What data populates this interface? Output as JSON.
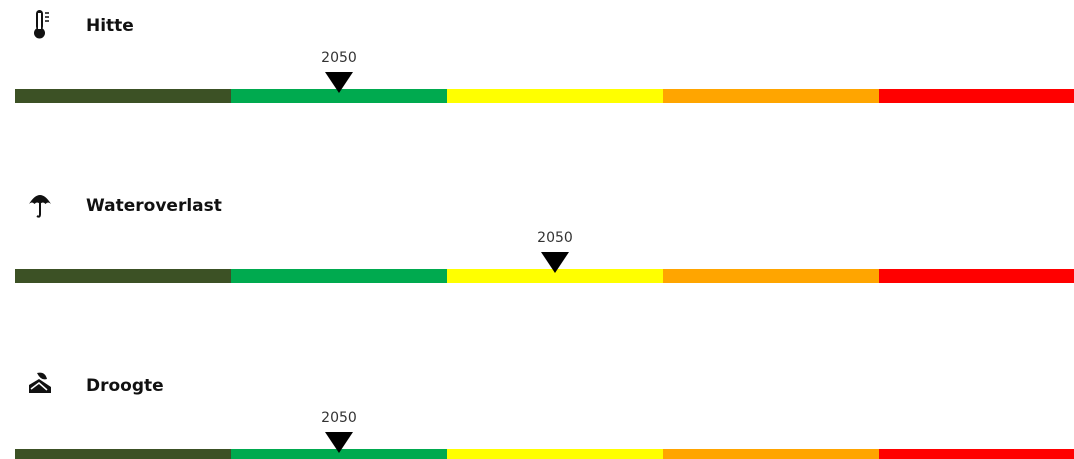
{
  "segment_colors": [
    "#3c5125",
    "#00aa4f",
    "#ffff00",
    "#ffa500",
    "#ff0000"
  ],
  "scales": [
    {
      "title": "Hitte",
      "year_label": "2050",
      "level": 2
    },
    {
      "title": "Wateroverlast",
      "year_label": "2050",
      "level": 3
    },
    {
      "title": "Droogte",
      "year_label": "2050",
      "level": 2
    }
  ]
}
